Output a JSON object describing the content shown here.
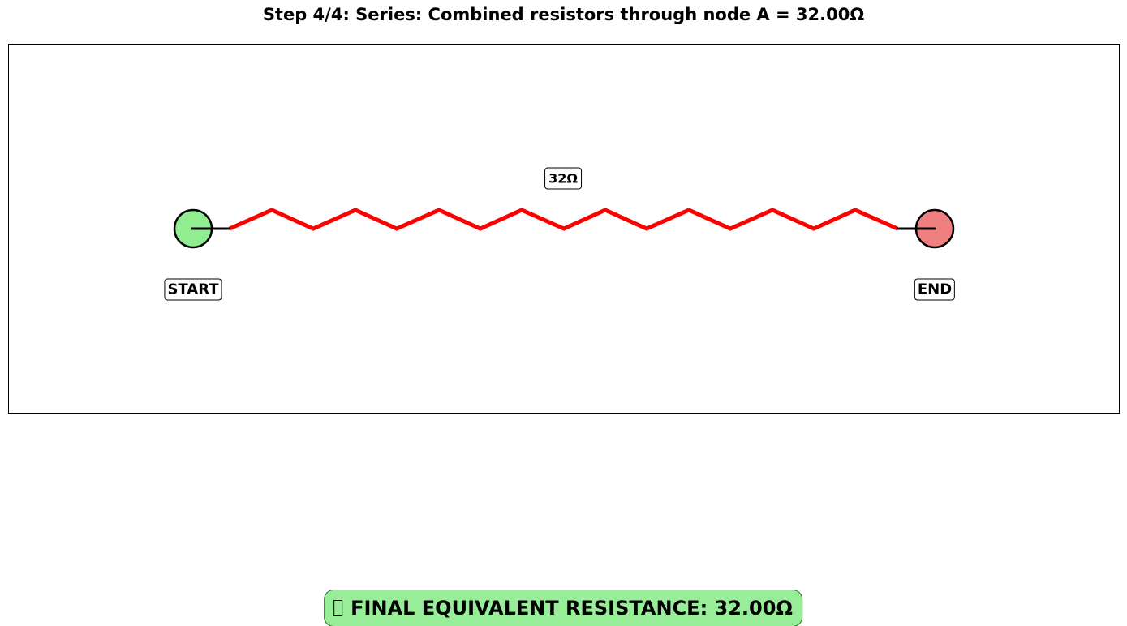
{
  "title": "Step 4/4: Series: Combined resistors through node A = 32.00Ω",
  "resistor": {
    "label": "32Ω",
    "color": "#ff0000"
  },
  "terminals": {
    "start": {
      "label": "START",
      "color": "#90ee90"
    },
    "end": {
      "label": "END",
      "color": "#f08080"
    }
  },
  "final_result": {
    "icon": "check-icon",
    "text": "FINAL EQUIVALENT RESISTANCE: 32.00Ω",
    "background": "#98ee98"
  }
}
